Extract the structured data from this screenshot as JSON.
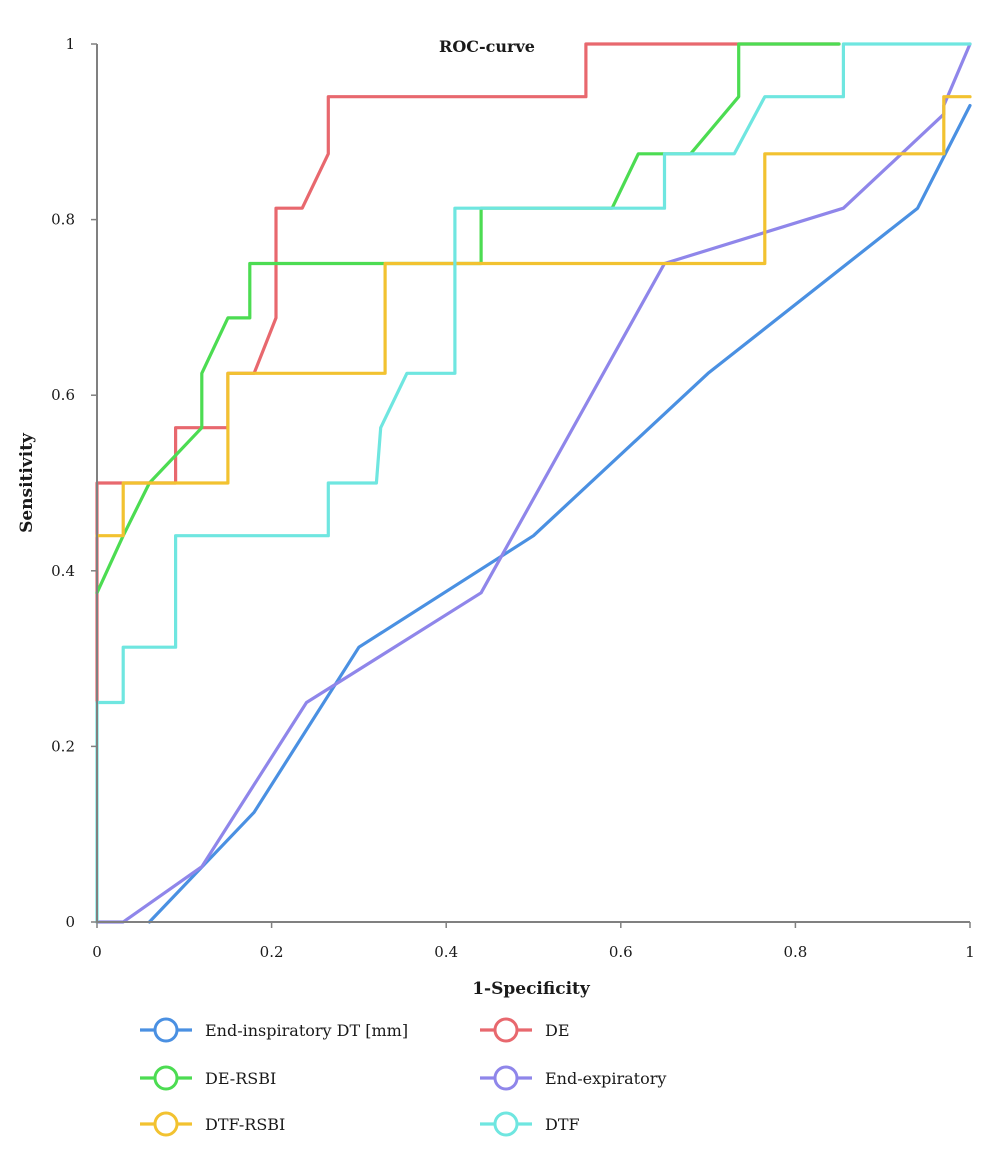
{
  "chart_data": {
    "type": "line",
    "title": "ROC-curve",
    "xlabel": "1-Specificity",
    "ylabel": "Sensitivity",
    "xlim": [
      0,
      1
    ],
    "ylim": [
      0,
      1
    ],
    "x_ticks": [
      "0",
      "0.2",
      "0.4",
      "0.6",
      "0.8",
      "1"
    ],
    "y_ticks": [
      "0",
      "0.2",
      "0.4",
      "0.6",
      "0.8",
      "1"
    ],
    "grid": false,
    "legend_position": "bottom",
    "series": [
      {
        "name": "End-inspiratory DT [mm]",
        "color": "#4a90e2",
        "points": [
          [
            0.06,
            0
          ],
          [
            0.18,
            0.125
          ],
          [
            0.3,
            0.313
          ],
          [
            0.5,
            0.44
          ],
          [
            0.7,
            0.625
          ],
          [
            0.94,
            0.813
          ],
          [
            1,
            0.93
          ]
        ]
      },
      {
        "name": "DE",
        "color": "#e8686e",
        "points": [
          [
            0,
            0.25
          ],
          [
            0,
            0.5
          ],
          [
            0.09,
            0.5
          ],
          [
            0.09,
            0.563
          ],
          [
            0.15,
            0.563
          ],
          [
            0.15,
            0.625
          ],
          [
            0.18,
            0.625
          ],
          [
            0.205,
            0.688
          ],
          [
            0.205,
            0.813
          ],
          [
            0.235,
            0.813
          ],
          [
            0.265,
            0.875
          ],
          [
            0.265,
            0.94
          ],
          [
            0.56,
            0.94
          ],
          [
            0.56,
            1
          ],
          [
            0.85,
            1
          ]
        ]
      },
      {
        "name": "DE-RSBI",
        "color": "#4cdc52",
        "points": [
          [
            0,
            0.375
          ],
          [
            0.03,
            0.44
          ],
          [
            0.06,
            0.5
          ],
          [
            0.12,
            0.563
          ],
          [
            0.12,
            0.625
          ],
          [
            0.15,
            0.688
          ],
          [
            0.175,
            0.688
          ],
          [
            0.175,
            0.75
          ],
          [
            0.44,
            0.75
          ],
          [
            0.44,
            0.813
          ],
          [
            0.59,
            0.813
          ],
          [
            0.62,
            0.875
          ],
          [
            0.68,
            0.875
          ],
          [
            0.735,
            0.94
          ],
          [
            0.735,
            1
          ],
          [
            0.85,
            1
          ]
        ]
      },
      {
        "name": "End-expiratory",
        "color": "#8f86ea",
        "points": [
          [
            0,
            0
          ],
          [
            0.03,
            0
          ],
          [
            0.12,
            0.063
          ],
          [
            0.24,
            0.25
          ],
          [
            0.44,
            0.375
          ],
          [
            0.65,
            0.75
          ],
          [
            0.855,
            0.813
          ],
          [
            0.97,
            0.92
          ],
          [
            0.97,
            0.93
          ],
          [
            1,
            1
          ]
        ]
      },
      {
        "name": "DTF-RSBI",
        "color": "#f2c230",
        "points": [
          [
            0,
            0.44
          ],
          [
            0.03,
            0.44
          ],
          [
            0.03,
            0.5
          ],
          [
            0.15,
            0.5
          ],
          [
            0.15,
            0.563
          ],
          [
            0.15,
            0.625
          ],
          [
            0.33,
            0.625
          ],
          [
            0.33,
            0.75
          ],
          [
            0.765,
            0.75
          ],
          [
            0.765,
            0.875
          ],
          [
            0.97,
            0.875
          ],
          [
            0.97,
            0.94
          ],
          [
            1,
            0.94
          ]
        ]
      },
      {
        "name": "DTF",
        "color": "#6fe6e0",
        "points": [
          [
            0,
            0
          ],
          [
            0,
            0.25
          ],
          [
            0.03,
            0.25
          ],
          [
            0.03,
            0.313
          ],
          [
            0.09,
            0.313
          ],
          [
            0.09,
            0.44
          ],
          [
            0.265,
            0.44
          ],
          [
            0.265,
            0.5
          ],
          [
            0.32,
            0.5
          ],
          [
            0.325,
            0.563
          ],
          [
            0.355,
            0.625
          ],
          [
            0.41,
            0.625
          ],
          [
            0.41,
            0.813
          ],
          [
            0.65,
            0.813
          ],
          [
            0.65,
            0.875
          ],
          [
            0.73,
            0.875
          ],
          [
            0.765,
            0.94
          ],
          [
            0.855,
            0.94
          ],
          [
            0.855,
            1
          ],
          [
            1,
            1
          ]
        ]
      }
    ]
  }
}
